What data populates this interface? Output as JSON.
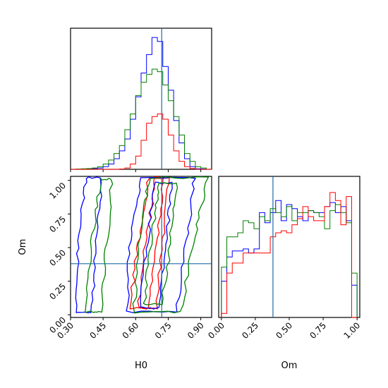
{
  "chart_data": {
    "type": "corner",
    "parameters": [
      "H0",
      "Om"
    ],
    "truth": {
      "H0": 0.72,
      "Om": 0.38
    },
    "colors": {
      "red": "#ff0000",
      "blue": "#0000ff",
      "green": "#008000",
      "truth": "#1f6aa5"
    },
    "panels": [
      {
        "id": "hist-H0",
        "type": "histogram",
        "x_param": "H0",
        "xlim": [
          0.3,
          0.95
        ],
        "bin_edges": [
          0.3,
          0.325,
          0.35,
          0.375,
          0.4,
          0.425,
          0.45,
          0.475,
          0.5,
          0.525,
          0.55,
          0.575,
          0.6,
          0.625,
          0.65,
          0.675,
          0.7,
          0.725,
          0.75,
          0.775,
          0.8,
          0.825,
          0.85,
          0.875,
          0.9,
          0.925,
          0.95
        ],
        "series": [
          {
            "name": "",
            "color": "#0000ff",
            "values": [
              0,
              0,
              0.002,
              0.004,
              0.006,
              0.01,
              0.02,
              0.04,
              0.08,
              0.14,
              0.23,
              0.38,
              0.55,
              0.73,
              0.87,
              1.0,
              0.97,
              0.78,
              0.6,
              0.37,
              0.2,
              0.08,
              0.02,
              0.004,
              0.002,
              0
            ]
          },
          {
            "name": "",
            "color": "#008000",
            "values": [
              0,
              0.002,
              0.004,
              0.006,
              0.01,
              0.02,
              0.04,
              0.07,
              0.12,
              0.18,
              0.3,
              0.42,
              0.56,
              0.66,
              0.72,
              0.76,
              0.74,
              0.64,
              0.52,
              0.4,
              0.26,
              0.12,
              0.06,
              0.02,
              0.01,
              0
            ]
          },
          {
            "name": "",
            "color": "#ff0000",
            "values": [
              0,
              0,
              0,
              0,
              0,
              0,
              0,
              0,
              0,
              0.002,
              0.01,
              0.04,
              0.1,
              0.22,
              0.35,
              0.4,
              0.42,
              0.38,
              0.26,
              0.14,
              0.06,
              0.02,
              0.006,
              0,
              0,
              0
            ]
          }
        ]
      },
      {
        "id": "contour-H0-Om",
        "type": "contour",
        "x_param": "H0",
        "y_param": "Om",
        "xlim": [
          0.3,
          0.95
        ],
        "ylim": [
          -0.02,
          1.03
        ],
        "series": [
          {
            "name": "",
            "color": "#ff0000",
            "regions": [
              [
                [
                  0.575,
                  0.05
                ],
                [
                  0.6,
                  0.4
                ],
                [
                  0.63,
                  0.72
                ],
                [
                  0.66,
                  1.02
                ],
                [
                  0.73,
                  1.02
                ],
                [
                  0.71,
                  0.7
                ],
                [
                  0.69,
                  0.4
                ],
                [
                  0.66,
                  0.05
                ]
              ],
              [
                [
                  0.61,
                  0.05
                ],
                [
                  0.63,
                  0.38
                ],
                [
                  0.665,
                  0.72
                ],
                [
                  0.69,
                  1.02
                ],
                [
                  0.75,
                  1.02
                ],
                [
                  0.735,
                  0.7
                ],
                [
                  0.715,
                  0.4
                ],
                [
                  0.695,
                  0.05
                ]
              ]
            ]
          },
          {
            "name": "",
            "color": "#0000ff",
            "regions": [
              [
                [
                  0.32,
                  0.02
                ],
                [
                  0.33,
                  0.4
                ],
                [
                  0.35,
                  0.75
                ],
                [
                  0.37,
                  1.02
                ],
                [
                  0.44,
                  1.02
                ],
                [
                  0.43,
                  0.7
                ],
                [
                  0.41,
                  0.35
                ],
                [
                  0.4,
                  0.02
                ]
              ],
              [
                [
                  0.56,
                  0.02
                ],
                [
                  0.57,
                  0.45
                ],
                [
                  0.6,
                  0.8
                ],
                [
                  0.63,
                  1.02
                ],
                [
                  0.87,
                  1.02
                ],
                [
                  0.85,
                  0.75
                ],
                [
                  0.82,
                  0.4
                ],
                [
                  0.79,
                  0.02
                ]
              ],
              [
                [
                  0.62,
                  0.05
                ],
                [
                  0.64,
                  0.4
                ],
                [
                  0.67,
                  0.72
                ],
                [
                  0.69,
                  0.98
                ],
                [
                  0.77,
                  0.98
                ],
                [
                  0.75,
                  0.7
                ],
                [
                  0.73,
                  0.4
                ],
                [
                  0.7,
                  0.05
                ]
              ]
            ]
          },
          {
            "name": "",
            "color": "#008000",
            "regions": [
              [
                [
                  0.37,
                  0.02
                ],
                [
                  0.39,
                  0.45
                ],
                [
                  0.42,
                  0.78
                ],
                [
                  0.44,
                  1.01
                ],
                [
                  0.49,
                  1.01
                ],
                [
                  0.48,
                  0.72
                ],
                [
                  0.46,
                  0.4
                ],
                [
                  0.44,
                  0.02
                ]
              ],
              [
                [
                  0.59,
                  0.02
                ],
                [
                  0.61,
                  0.42
                ],
                [
                  0.64,
                  0.78
                ],
                [
                  0.66,
                  1.02
                ],
                [
                  0.93,
                  1.02
                ],
                [
                  0.89,
                  0.72
                ],
                [
                  0.85,
                  0.4
                ],
                [
                  0.81,
                  0.02
                ]
              ],
              [
                [
                  0.64,
                  0.08
                ],
                [
                  0.66,
                  0.42
                ],
                [
                  0.69,
                  0.76
                ],
                [
                  0.71,
                  0.98
                ],
                [
                  0.79,
                  0.98
                ],
                [
                  0.77,
                  0.7
                ],
                [
                  0.75,
                  0.4
                ],
                [
                  0.72,
                  0.08
                ]
              ]
            ]
          }
        ]
      },
      {
        "id": "hist-Om",
        "type": "histogram",
        "x_param": "Om",
        "xlim": [
          -0.02,
          1.02
        ],
        "bin_edges": [
          0.0,
          0.04,
          0.08,
          0.12,
          0.16,
          0.2,
          0.24,
          0.28,
          0.32,
          0.36,
          0.4,
          0.44,
          0.48,
          0.52,
          0.56,
          0.6,
          0.64,
          0.68,
          0.72,
          0.76,
          0.8,
          0.84,
          0.88,
          0.92,
          0.96,
          1.0
        ],
        "series": [
          {
            "name": "",
            "color": "#0000ff",
            "values": [
              0.18,
              0.3,
              0.33,
              0.33,
              0.34,
              0.32,
              0.34,
              0.52,
              0.47,
              0.52,
              0.58,
              0.48,
              0.56,
              0.54,
              0.5,
              0.48,
              0.53,
              0.52,
              0.52,
              0.55,
              0.57,
              0.52,
              0.55,
              0.48,
              0.16
            ]
          },
          {
            "name": "",
            "color": "#008000",
            "values": [
              0.25,
              0.4,
              0.4,
              0.42,
              0.48,
              0.47,
              0.44,
              0.5,
              0.48,
              0.54,
              0.52,
              0.5,
              0.55,
              0.48,
              0.52,
              0.52,
              0.53,
              0.52,
              0.5,
              0.44,
              0.53,
              0.56,
              0.52,
              0.47,
              0.22
            ]
          },
          {
            "name": "",
            "color": "#ff0000",
            "values": [
              0.02,
              0.22,
              0.27,
              0.27,
              0.32,
              0.32,
              0.32,
              0.32,
              0.32,
              0.4,
              0.42,
              0.43,
              0.42,
              0.46,
              0.49,
              0.55,
              0.5,
              0.48,
              0.48,
              0.55,
              0.62,
              0.58,
              0.46,
              0.6,
              0.0
            ]
          }
        ]
      }
    ],
    "axes": {
      "H0": {
        "label": "H0",
        "ticks": [
          0.3,
          0.45,
          0.6,
          0.75,
          0.9
        ],
        "tick_labels": [
          "0.30",
          "0.45",
          "0.60",
          "0.75",
          "0.90"
        ]
      },
      "Om_y": {
        "label": "Om",
        "ticks": [
          0.0,
          0.25,
          0.5,
          0.75,
          1.0
        ],
        "tick_labels": [
          "0.00",
          "0.25",
          "0.50",
          "0.75",
          "1.00"
        ]
      },
      "Om_x": {
        "label": "Om",
        "ticks": [
          0.0,
          0.25,
          0.5,
          0.75,
          1.0
        ],
        "tick_labels": [
          "0.00",
          "0.25",
          "0.50",
          "0.75",
          "1.00"
        ]
      }
    }
  }
}
